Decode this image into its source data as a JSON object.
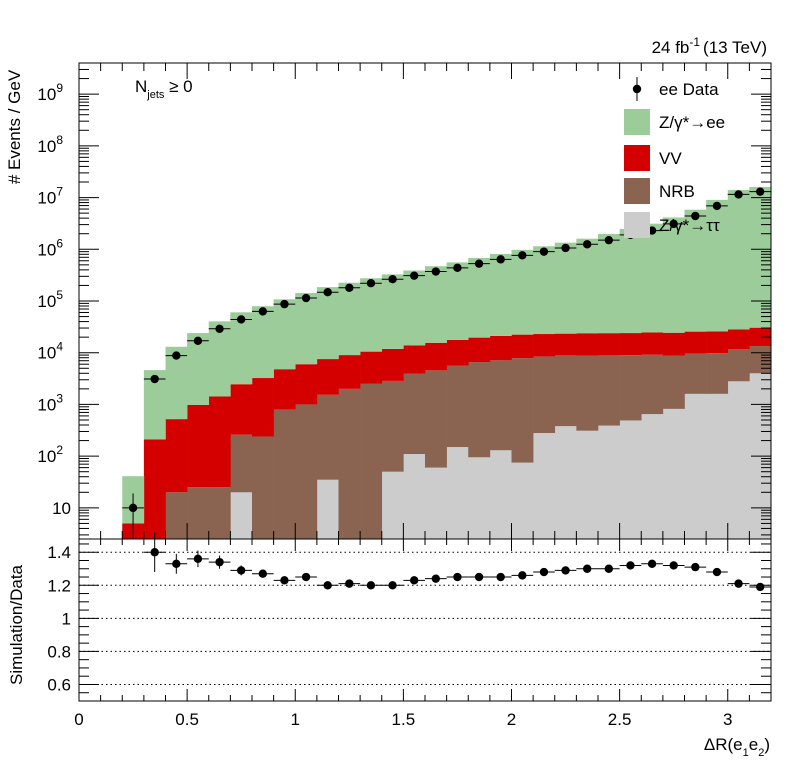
{
  "chart_data": [
    {
      "type": "stacked-histogram",
      "lumi_label": "24 fb",
      "lumi_exp": "-1",
      "lumi_energy": "(13 TeV)",
      "annotation": {
        "main": "N",
        "sub": "jets",
        "rest": " ≥ 0"
      },
      "ylabel": "# Events / GeV",
      "yscale": "log",
      "ylim": [
        2.5,
        4000000000.0
      ],
      "xlim": [
        0,
        3.2
      ],
      "bin_edges": [
        0.2,
        0.3,
        0.4,
        0.5,
        0.6,
        0.7,
        0.8,
        0.9,
        1.0,
        1.1,
        1.2,
        1.3,
        1.4,
        1.5,
        1.6,
        1.7,
        1.8,
        1.9,
        2.0,
        2.1,
        2.2,
        2.3,
        2.4,
        2.5,
        2.6,
        2.7,
        2.8,
        2.9,
        3.0,
        3.1,
        3.2
      ],
      "y_ticks": [
        {
          "value": 10,
          "label": "10",
          "exp": ""
        },
        {
          "value": 100,
          "label": "10",
          "exp": "2"
        },
        {
          "value": 1000,
          "label": "10",
          "exp": "3"
        },
        {
          "value": 10000,
          "label": "10",
          "exp": "4"
        },
        {
          "value": 100000,
          "label": "10",
          "exp": "5"
        },
        {
          "value": 1000000,
          "label": "10",
          "exp": "6"
        },
        {
          "value": 10000000,
          "label": "10",
          "exp": "7"
        },
        {
          "value": 100000000,
          "label": "10",
          "exp": "8"
        },
        {
          "value": 1000000000,
          "label": "10",
          "exp": "9"
        }
      ],
      "series": [
        {
          "name": "Z/γ*→ττ",
          "color": "#cccccc",
          "values": [
            0,
            0,
            0,
            0,
            0,
            20,
            0,
            0,
            0,
            35,
            0,
            0,
            50,
            110,
            60,
            150,
            95,
            130,
            75,
            280,
            380,
            310,
            390,
            490,
            650,
            820,
            1600,
            1600,
            2800,
            4000
          ]
        },
        {
          "name": "NRB",
          "color": "#8a6451",
          "values": [
            0,
            0,
            20,
            25,
            25,
            240,
            240,
            800,
            1000,
            1500,
            2000,
            2500,
            2800,
            3800,
            4500,
            5500,
            6500,
            7000,
            7800,
            8200,
            8500,
            8500,
            8500,
            8500,
            8500,
            8000,
            8000,
            8200,
            9000,
            9500
          ]
        },
        {
          "name": "VV",
          "color": "#d40000",
          "values": [
            5,
            210,
            500,
            950,
            1400,
            2200,
            3000,
            4000,
            5000,
            6000,
            7000,
            8000,
            9000,
            10000,
            11000,
            12000,
            13000,
            14000,
            14500,
            14500,
            14500,
            15000,
            15000,
            15000,
            15500,
            15500,
            16000,
            16000,
            16500,
            17000
          ]
        },
        {
          "name": "Z/γ*→ee",
          "color": "#9dcc9b",
          "values": [
            36,
            4400,
            12500,
            23000,
            39000,
            58000,
            76000,
            103000,
            137000,
            178000,
            217000,
            265000,
            315000,
            375000,
            455000,
            540000,
            660000,
            790000,
            950000,
            1120000,
            1320000,
            1580000,
            1950000,
            2450000,
            3100000,
            4100000,
            5800000,
            9000000,
            14000000,
            16000000
          ]
        }
      ],
      "data": {
        "name": "ee Data",
        "values": [
          10,
          3100,
          8800,
          17000,
          29000,
          44000,
          63000,
          87000,
          114000,
          148000,
          180000,
          221000,
          264000,
          309000,
          371000,
          438000,
          527000,
          639000,
          764000,
          900000,
          1060000,
          1250000,
          1500000,
          1900000,
          2300000,
          3100000,
          4400000,
          6900000,
          11500000,
          13000000
        ],
        "errors": [
          5,
          60,
          100,
          150,
          200,
          250,
          300,
          350,
          400,
          450,
          450,
          500,
          550,
          600,
          650,
          700,
          750,
          800,
          900,
          950,
          1000,
          1100,
          1200,
          1300,
          1400,
          1500,
          1700,
          2000,
          2500,
          2600
        ]
      }
    },
    {
      "type": "scatter",
      "ylabel": "Simulation/Data",
      "xlabel_main": "ΔR(e",
      "xlabel_sub1": "1",
      "xlabel_mid": "e",
      "xlabel_sub2": "2",
      "xlabel_close": ")",
      "xlim": [
        0,
        3.2
      ],
      "ylim": [
        0.5,
        1.48
      ],
      "y_ticks": [
        {
          "value": 0.6,
          "label": "0.6"
        },
        {
          "value": 0.8,
          "label": "0.8"
        },
        {
          "value": 1.0,
          "label": "1"
        },
        {
          "value": 1.2,
          "label": "1.2"
        },
        {
          "value": 1.4,
          "label": "1.4"
        }
      ],
      "x_ticks": [
        {
          "value": 0,
          "label": "0"
        },
        {
          "value": 0.5,
          "label": "0.5"
        },
        {
          "value": 1,
          "label": "1"
        },
        {
          "value": 1.5,
          "label": "1.5"
        },
        {
          "value": 2,
          "label": "2"
        },
        {
          "value": 2.5,
          "label": "2.5"
        },
        {
          "value": 3,
          "label": "3"
        }
      ],
      "grid": "horizontal dotted",
      "x": [
        0.35,
        0.45,
        0.55,
        0.65,
        0.75,
        0.85,
        0.95,
        1.05,
        1.15,
        1.25,
        1.35,
        1.45,
        1.55,
        1.65,
        1.75,
        1.85,
        1.95,
        2.05,
        2.15,
        2.25,
        2.35,
        2.45,
        2.55,
        2.65,
        2.75,
        2.85,
        2.95,
        3.05,
        3.15
      ],
      "y": [
        1.4,
        1.33,
        1.36,
        1.34,
        1.29,
        1.27,
        1.23,
        1.25,
        1.2,
        1.21,
        1.2,
        1.2,
        1.23,
        1.24,
        1.25,
        1.25,
        1.25,
        1.26,
        1.28,
        1.29,
        1.3,
        1.3,
        1.32,
        1.33,
        1.32,
        1.31,
        1.28,
        1.21,
        1.19
      ],
      "y_err": [
        0.12,
        0.06,
        0.05,
        0.04,
        0.03,
        0.02,
        0.015,
        0.015,
        0.01,
        0.01,
        0.01,
        0.01,
        0.01,
        0.01,
        0.01,
        0.01,
        0.01,
        0.01,
        0.01,
        0.01,
        0.01,
        0.01,
        0.01,
        0.01,
        0.01,
        0.01,
        0.01,
        0.01,
        0.01
      ]
    }
  ]
}
